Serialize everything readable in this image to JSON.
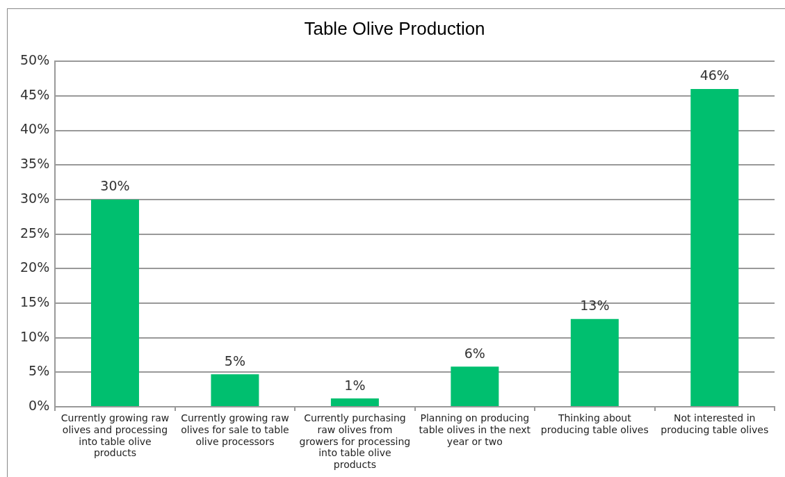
{
  "chart_data": {
    "type": "bar",
    "title": "Table Olive Production",
    "categories": [
      "Currently growing raw olives and processing into table olive products",
      "Currently growing raw olives for sale to table olive processors",
      "Currently purchasing raw olives from growers for processing into table olive products",
      "Planning on producing table olives in the next year or two",
      "Thinking about producing table olives",
      "Not interested in producing table olives"
    ],
    "values": [
      30,
      4.7,
      1.2,
      5.8,
      12.7,
      46
    ],
    "value_labels": [
      "30%",
      "5%",
      "1%",
      "6%",
      "13%",
      "46%"
    ],
    "color": "#00bf6f",
    "ylim": [
      0,
      50
    ],
    "yticks": [
      {
        "value": 0,
        "label": "0%"
      },
      {
        "value": 5,
        "label": "5%"
      },
      {
        "value": 10,
        "label": "10%"
      },
      {
        "value": 15,
        "label": "15%"
      },
      {
        "value": 20,
        "label": "20%"
      },
      {
        "value": 25,
        "label": "25%"
      },
      {
        "value": 30,
        "label": "30%"
      },
      {
        "value": 35,
        "label": "35%"
      },
      {
        "value": 40,
        "label": "40%"
      },
      {
        "value": 45,
        "label": "45%"
      },
      {
        "value": 50,
        "label": "50%"
      }
    ],
    "grid": "y"
  }
}
